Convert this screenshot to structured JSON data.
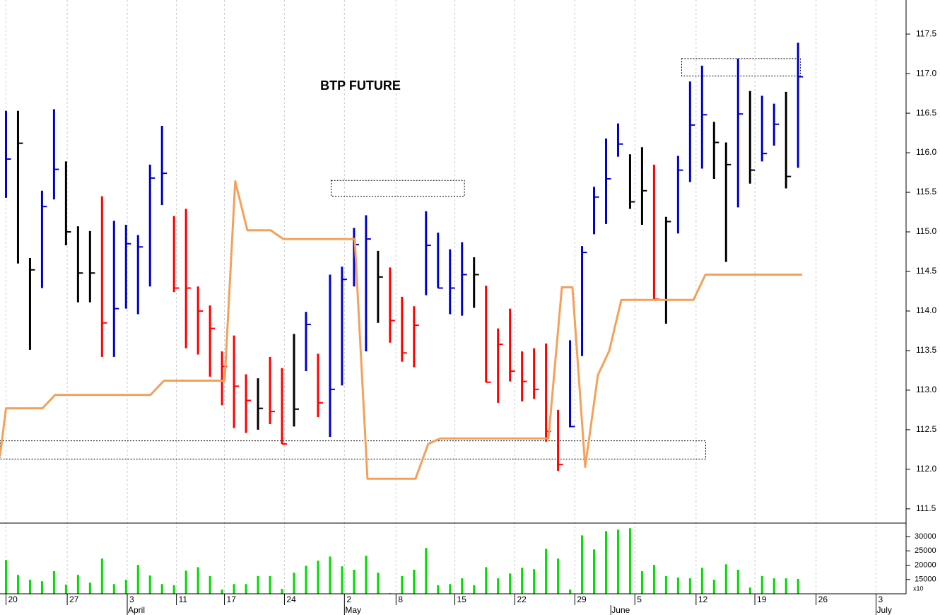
{
  "chart_data": [
    {
      "type": "hlc",
      "title": "BTP FUTURE",
      "xlim": [
        -0.5,
        75
      ],
      "ylim": [
        111.32,
        117.93
      ],
      "yticks": [
        111.5,
        {
          "value": 112,
          "label": "112.0"
        },
        112.5,
        {
          "value": 113,
          "label": "113.0"
        },
        113.5,
        {
          "value": 114,
          "label": "114.0"
        },
        114.5,
        {
          "value": 115,
          "label": "115.0"
        },
        115.5,
        {
          "value": 116,
          "label": "116.0"
        },
        116.5,
        {
          "value": 117,
          "label": "117.0"
        },
        117.5
      ],
      "x": [
        0,
        1,
        2,
        3,
        4,
        5,
        6,
        7,
        8,
        9,
        10,
        11,
        12,
        13,
        14,
        15,
        16,
        17,
        18,
        19,
        20,
        21,
        22,
        23,
        24,
        25,
        26,
        27,
        28,
        29,
        30,
        31,
        32,
        33,
        34,
        35,
        36,
        37,
        38,
        39,
        40,
        41,
        42,
        43,
        44,
        45,
        46,
        47,
        48,
        49,
        50,
        51,
        52,
        53,
        54,
        55,
        56,
        57,
        58,
        59,
        60,
        61,
        62,
        63,
        64,
        65,
        66
      ],
      "high": [
        116.53,
        116.53,
        114.67,
        115.52,
        116.55,
        115.89,
        115.07,
        115.01,
        115.45,
        115.14,
        115.09,
        114.96,
        115.85,
        116.34,
        115.2,
        115.29,
        114.31,
        114.07,
        113.49,
        113.69,
        113.2,
        113.15,
        113.42,
        113.28,
        113.71,
        113.99,
        113.46,
        114.46,
        114.56,
        115.05,
        115.21,
        114.76,
        114.55,
        114.18,
        114.06,
        115.26,
        114.99,
        114.78,
        114.87,
        114.68,
        114.32,
        113.78,
        114.03,
        113.49,
        113.53,
        113.59,
        112.75,
        113.63,
        114.82,
        115.57,
        116.18,
        116.37,
        115.98,
        116.07,
        115.85,
        115.19,
        115.96,
        116.9,
        117.1,
        116.39,
        116.13,
        117.19,
        116.78,
        116.72,
        116.62,
        116.77,
        117.39
      ],
      "low": [
        115.43,
        114.6,
        113.51,
        114.29,
        115.41,
        114.83,
        114.11,
        114.11,
        113.42,
        113.42,
        114.03,
        113.96,
        114.31,
        115.34,
        114.24,
        113.53,
        113.45,
        113.17,
        112.81,
        112.52,
        112.46,
        112.5,
        112.57,
        112.32,
        112.54,
        113.24,
        112.66,
        112.41,
        113.06,
        114.31,
        113.49,
        113.85,
        113.6,
        113.36,
        113.29,
        114.2,
        114.29,
        113.96,
        113.94,
        114.04,
        113.1,
        112.84,
        113.11,
        112.86,
        112.89,
        112.35,
        111.98,
        112.53,
        113.43,
        114.97,
        115.1,
        115.95,
        115.29,
        115.09,
        114.13,
        113.84,
        114.98,
        115.63,
        115.8,
        115.67,
        114.62,
        115.31,
        115.61,
        115.89,
        116.09,
        115.55,
        115.81
      ],
      "close": [
        115.92,
        116.12,
        114.52,
        115.32,
        115.79,
        115.0,
        114.48,
        114.48,
        113.85,
        114.03,
        114.85,
        114.81,
        115.68,
        115.74,
        114.29,
        114.29,
        114.0,
        113.78,
        113.3,
        113.05,
        112.87,
        112.77,
        112.73,
        112.32,
        112.76,
        113.83,
        112.84,
        113.01,
        114.4,
        114.84,
        114.91,
        114.43,
        113.88,
        113.47,
        113.82,
        114.83,
        114.29,
        114.29,
        114.46,
        114.46,
        113.1,
        113.58,
        113.24,
        113.11,
        113.01,
        112.48,
        112.06,
        112.54,
        114.74,
        115.44,
        115.67,
        116.11,
        115.38,
        115.52,
        114.15,
        115.13,
        115.78,
        116.35,
        116.48,
        116.13,
        115.85,
        116.49,
        115.78,
        115.99,
        116.36,
        115.7,
        116.96
      ],
      "colors": [
        "#0000cc",
        "#000000",
        "#000000",
        "#0000cc",
        "#0000cc",
        "#000000",
        "#000000",
        "#000000",
        "#ff0000",
        "#0000cc",
        "#0000cc",
        "#0000cc",
        "#0000cc",
        "#0000cc",
        "#ff0000",
        "#ff0000",
        "#ff0000",
        "#ff0000",
        "#ff0000",
        "#ff0000",
        "#ff0000",
        "#000000",
        "#ff0000",
        "#ff0000",
        "#000000",
        "#0000cc",
        "#ff0000",
        "#0000cc",
        "#0000cc",
        "#0000cc",
        "#0000cc",
        "#000000",
        "#ff0000",
        "#ff0000",
        "#ff0000",
        "#0000cc",
        "#0000cc",
        "#0000cc",
        "#0000cc",
        "#000000",
        "#ff0000",
        "#ff0000",
        "#ff0000",
        "#ff0000",
        "#ff0000",
        "#ff0000",
        "#ff0000",
        "#0000cc",
        "#0000cc",
        "#0000cc",
        "#0000cc",
        "#0000cc",
        "#000000",
        "#000000",
        "#ff0000",
        "#000000",
        "#0000cc",
        "#0000cc",
        "#0000cc",
        "#000000",
        "#000000",
        "#0000cc",
        "#000000",
        "#0000cc",
        "#0000cc",
        "#000000",
        "#0000cc"
      ],
      "line": {
        "color": "#f5a05a",
        "x": [
          -0.5,
          0,
          3.03,
          4.09,
          12.04,
          13.16,
          18.22,
          19.1,
          20.11,
          22.05,
          23.11,
          29.06,
          30.12,
          34.12,
          35.18,
          36.19,
          45.2,
          46.32,
          47.2,
          48.26,
          49.32,
          50.27,
          51.27,
          57.28,
          58.28,
          66.35
        ],
        "values": [
          112.17,
          112.77,
          112.77,
          112.94,
          112.94,
          113.12,
          113.12,
          115.64,
          115.02,
          115.02,
          114.91,
          114.91,
          111.88,
          111.88,
          112.32,
          112.39,
          112.39,
          114.3,
          114.3,
          112.03,
          113.19,
          113.5,
          114.14,
          114.14,
          114.46,
          114.46
        ]
      },
      "boxes": [
        {
          "x0": 27.1,
          "x1": 38.2,
          "y0": 115.45,
          "y1": 115.65
        },
        {
          "x0": 56.3,
          "x1": 66.2,
          "y0": 116.97,
          "y1": 117.19
        },
        {
          "x0": -0.5,
          "x1": 58.3,
          "y0": 112.13,
          "y1": 112.36
        }
      ]
    },
    {
      "type": "bar",
      "unit_label": "x10",
      "color": "#00dd00",
      "xlim": [
        -0.5,
        75
      ],
      "ylim": [
        10000,
        34200
      ],
      "yticks": [
        15000,
        20000,
        25000,
        30000
      ],
      "x": [
        0,
        1,
        2,
        3,
        4,
        5,
        6,
        7,
        8,
        9,
        10,
        11,
        12,
        13,
        14,
        15,
        16,
        17,
        18,
        19,
        20,
        21,
        22,
        23,
        24,
        25,
        26,
        27,
        28,
        29,
        30,
        31,
        32,
        33,
        34,
        35,
        36,
        37,
        38,
        39,
        40,
        41,
        42,
        43,
        44,
        45,
        46,
        47,
        48,
        49,
        50,
        51,
        52,
        53,
        54,
        55,
        56,
        57,
        58,
        59,
        60,
        61,
        62,
        63,
        64,
        65,
        66
      ],
      "values": [
        21800,
        16600,
        14900,
        14400,
        17900,
        13200,
        16600,
        13900,
        22300,
        13400,
        14900,
        20100,
        16400,
        13400,
        13000,
        18100,
        19300,
        16200,
        11500,
        13400,
        13400,
        16200,
        16200,
        11700,
        17400,
        19800,
        21600,
        23000,
        19600,
        18400,
        23300,
        17400,
        10200,
        16200,
        18400,
        26000,
        13000,
        13400,
        15400,
        13000,
        19300,
        15400,
        17100,
        19100,
        18600,
        25700,
        22300,
        11500,
        30400,
        25500,
        31900,
        32400,
        32900,
        17900,
        20100,
        16200,
        15700,
        15400,
        19100,
        14900,
        20300,
        18400,
        12200,
        16200,
        15400,
        15400,
        15200
      ],
      "xticks": [
        {
          "value": 0,
          "label": "20"
        },
        {
          "value": 5.1,
          "label": "27"
        },
        {
          "value": 10.1,
          "label": "3"
        },
        {
          "value": 14.2,
          "label": "11"
        },
        {
          "value": 18.2,
          "label": "17"
        },
        {
          "value": 23.2,
          "label": "24"
        },
        {
          "value": 28.2,
          "label": "2"
        },
        {
          "value": 32.5,
          "label": "8"
        },
        {
          "value": 37.4,
          "label": "15"
        },
        {
          "value": 42.4,
          "label": "22"
        },
        {
          "value": 47.4,
          "label": "29"
        },
        {
          "value": 52.4,
          "label": "5"
        },
        {
          "value": 57.5,
          "label": "12"
        },
        {
          "value": 62.4,
          "label": "19"
        },
        {
          "value": 67.5,
          "label": "26"
        },
        {
          "value": 72.5,
          "label": "3"
        }
      ],
      "month_ticks": [
        {
          "value": 10.1,
          "label": "April"
        },
        {
          "value": 28.2,
          "label": "May"
        },
        {
          "value": 50.4,
          "label": "June"
        },
        {
          "value": 72.5,
          "label": "July"
        }
      ]
    }
  ]
}
